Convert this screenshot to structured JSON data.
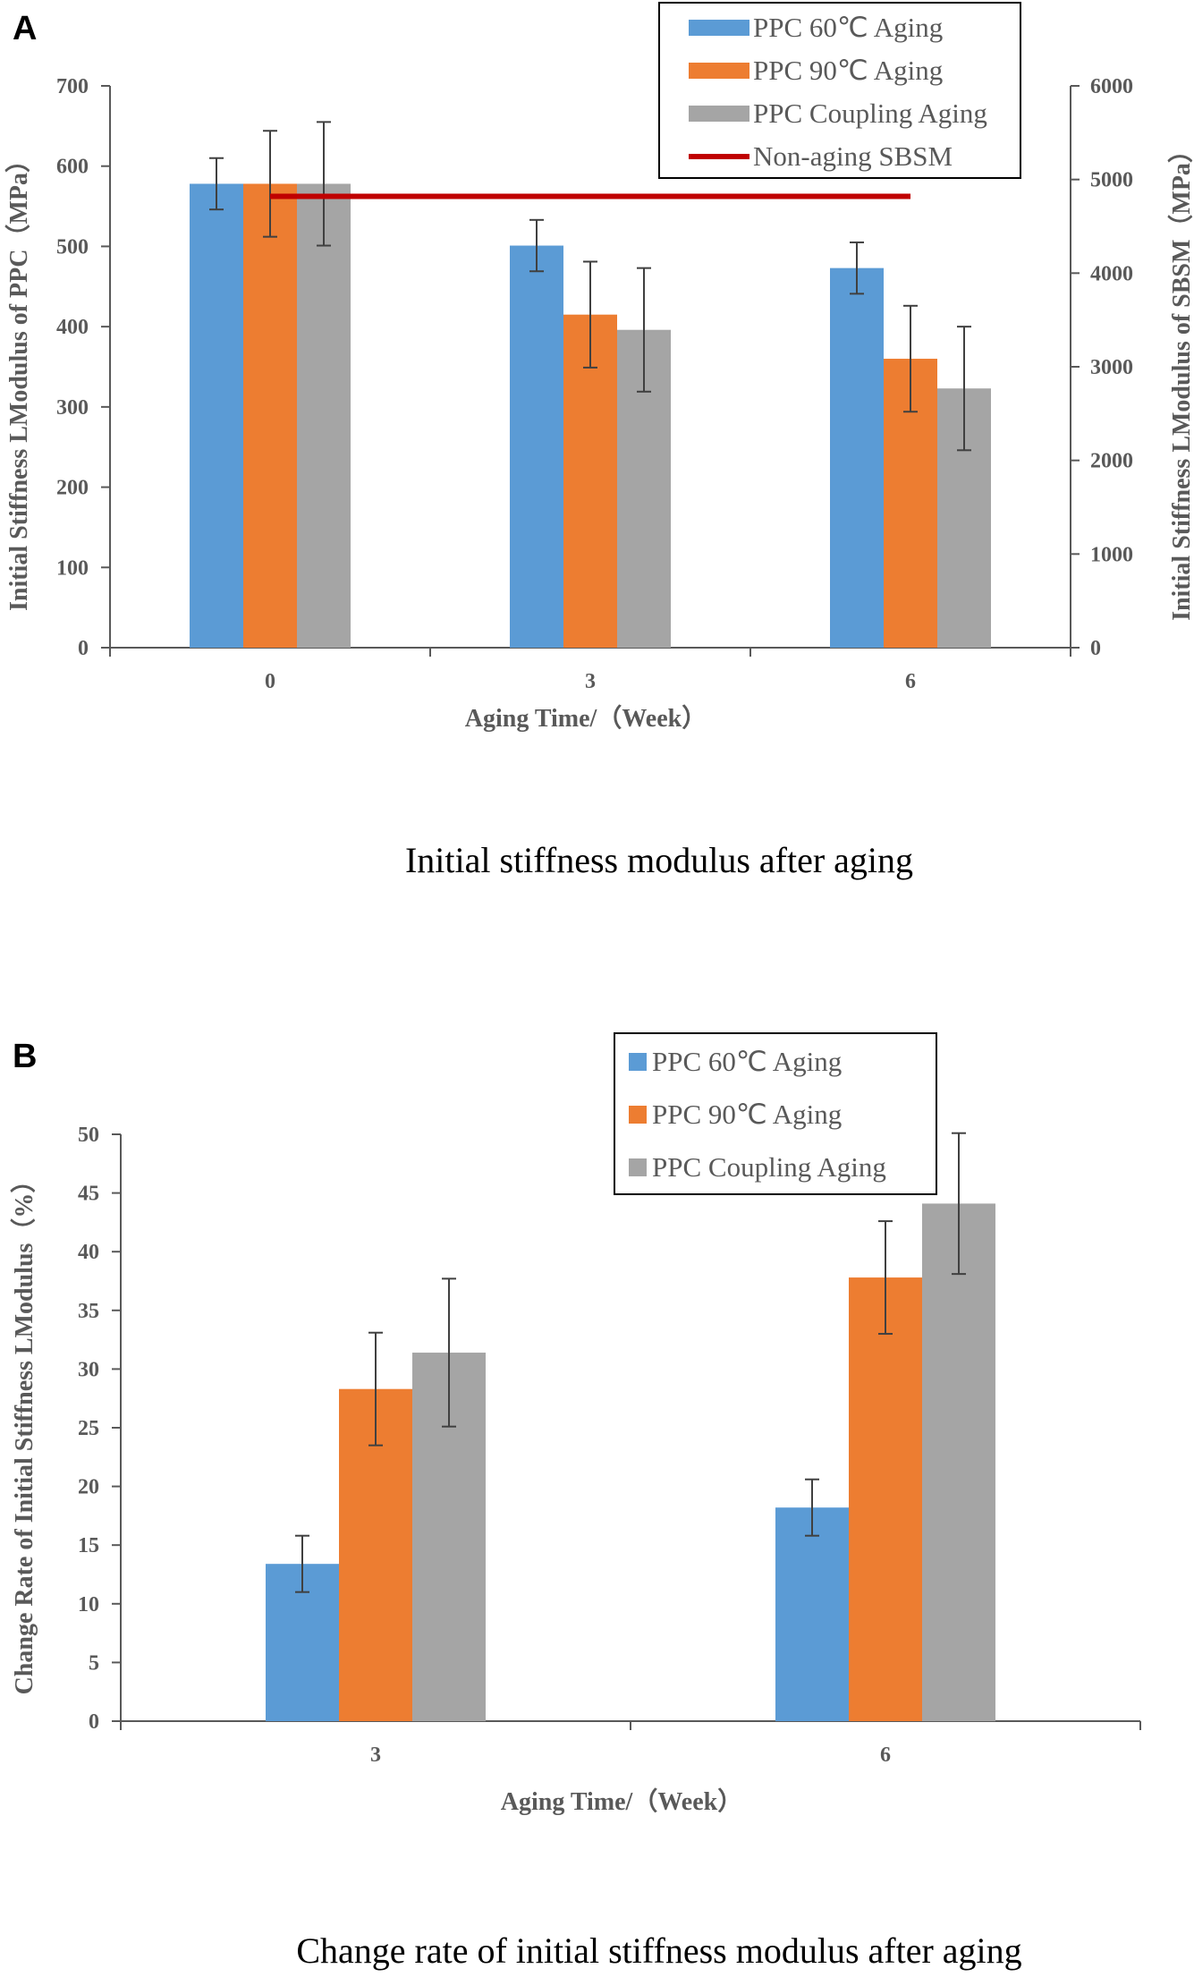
{
  "colors": {
    "ppc60": "#5b9bd5",
    "ppc90": "#ed7d31",
    "coupling": "#a5a5a5",
    "sbsm": "#c00000",
    "axis": "#595959",
    "error": "#404040"
  },
  "chart_data": [
    {
      "panel": "A",
      "type": "bar",
      "caption": "Initial stiffness modulus after aging",
      "xlabel": "Aging Time/（Week）",
      "ylabel": "Initial Stiffness LModulus of PPC（MPa）",
      "y2label": "Initial Stiffness LModulus of SBSM（MPa）",
      "categories": [
        "0",
        "3",
        "6"
      ],
      "ylim": [
        0,
        700
      ],
      "yticks": [
        "0",
        "100",
        "200",
        "300",
        "400",
        "500",
        "600",
        "700"
      ],
      "y2lim": [
        0,
        6000
      ],
      "y2ticks": [
        "0",
        "1000",
        "2000",
        "3000",
        "4000",
        "5000",
        "6000"
      ],
      "series": [
        {
          "name": "PPC 60℃ Aging",
          "color_key": "ppc60",
          "values": [
            578,
            501,
            473
          ],
          "errors": [
            32,
            32,
            32
          ]
        },
        {
          "name": "PPC 90℃ Aging",
          "color_key": "ppc90",
          "values": [
            578,
            415,
            360
          ],
          "errors": [
            66,
            66,
            66
          ]
        },
        {
          "name": "PPC Coupling Aging",
          "color_key": "coupling",
          "values": [
            578,
            396,
            323
          ],
          "errors": [
            77,
            77,
            77
          ]
        }
      ],
      "line_series": {
        "name": "Non-aging SBSM",
        "color_key": "sbsm",
        "axis": "right",
        "values": [
          4820,
          4820,
          4820
        ]
      }
    },
    {
      "panel": "B",
      "type": "bar",
      "caption": "Change rate of initial stiffness modulus after aging",
      "xlabel": "Aging Time/（Week）",
      "ylabel": "Change Rate of Initial Stiffness LModulus（%）",
      "categories": [
        "3",
        "6"
      ],
      "ylim": [
        0,
        50
      ],
      "yticks": [
        "0",
        "5",
        "10",
        "15",
        "20",
        "25",
        "30",
        "35",
        "40",
        "45",
        "50"
      ],
      "series": [
        {
          "name": "PPC 60℃ Aging",
          "color_key": "ppc60",
          "values": [
            13.4,
            18.2
          ],
          "errors": [
            2.4,
            2.4
          ]
        },
        {
          "name": "PPC 90℃ Aging",
          "color_key": "ppc90",
          "values": [
            28.3,
            37.8
          ],
          "errors": [
            4.8,
            4.8
          ]
        },
        {
          "name": "PPC Coupling Aging",
          "color_key": "coupling",
          "values": [
            31.4,
            44.1
          ],
          "errors": [
            6.3,
            6.0
          ]
        }
      ]
    }
  ]
}
